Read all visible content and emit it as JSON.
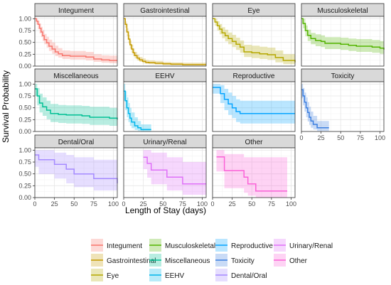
{
  "chart_data": {
    "type": "step",
    "ylabel": "Survival Probability",
    "xlabel": "Length of Stay (days)",
    "xlim": [
      0,
      105
    ],
    "ylim": [
      0,
      1.05
    ],
    "xticks": [
      0,
      25,
      50,
      75,
      100
    ],
    "yticks": [
      0.0,
      0.25,
      0.5,
      0.75,
      1.0
    ],
    "ytick_labels": [
      "0.00",
      "0.25",
      "0.50",
      "0.75",
      "1.00"
    ],
    "grid": true,
    "legend_position": "bottom",
    "panels": [
      {
        "name": "Integument",
        "color": "#F8766D",
        "x": [
          0,
          2,
          4,
          6,
          8,
          10,
          12,
          15,
          18,
          22,
          26,
          30,
          35,
          45,
          55,
          65,
          75,
          85,
          95,
          105
        ],
        "y": [
          1.0,
          0.95,
          0.88,
          0.8,
          0.72,
          0.64,
          0.56,
          0.49,
          0.42,
          0.36,
          0.3,
          0.26,
          0.22,
          0.21,
          0.21,
          0.19,
          0.15,
          0.13,
          0.12,
          0.12
        ],
        "upper": [
          1.0,
          1.0,
          0.96,
          0.9,
          0.83,
          0.76,
          0.68,
          0.62,
          0.56,
          0.5,
          0.43,
          0.38,
          0.33,
          0.32,
          0.32,
          0.3,
          0.25,
          0.23,
          0.22,
          0.22
        ],
        "lower": [
          1.0,
          0.88,
          0.78,
          0.69,
          0.61,
          0.53,
          0.46,
          0.39,
          0.32,
          0.26,
          0.21,
          0.18,
          0.15,
          0.14,
          0.14,
          0.12,
          0.09,
          0.07,
          0.06,
          0.06
        ]
      },
      {
        "name": "Gastrointestinal",
        "color": "#C49A00",
        "x": [
          0,
          2,
          4,
          6,
          8,
          10,
          12,
          14,
          17,
          20,
          24,
          28,
          32,
          40,
          50,
          60,
          75,
          90,
          105
        ],
        "y": [
          1.0,
          0.88,
          0.72,
          0.57,
          0.45,
          0.36,
          0.28,
          0.22,
          0.17,
          0.13,
          0.1,
          0.08,
          0.07,
          0.06,
          0.05,
          0.04,
          0.03,
          0.03,
          0.03
        ],
        "upper": [
          1.0,
          0.94,
          0.8,
          0.66,
          0.54,
          0.45,
          0.37,
          0.3,
          0.24,
          0.19,
          0.16,
          0.13,
          0.12,
          0.11,
          0.09,
          0.08,
          0.07,
          0.07,
          0.07
        ],
        "lower": [
          1.0,
          0.81,
          0.63,
          0.48,
          0.37,
          0.28,
          0.21,
          0.16,
          0.12,
          0.09,
          0.06,
          0.05,
          0.04,
          0.03,
          0.02,
          0.01,
          0.01,
          0.01,
          0.01
        ]
      },
      {
        "name": "Eye",
        "color": "#B5A800",
        "x": [
          0,
          3,
          6,
          9,
          12,
          16,
          20,
          25,
          30,
          35,
          40,
          50,
          60,
          70,
          80,
          90,
          105
        ],
        "y": [
          1.0,
          0.93,
          0.85,
          0.78,
          0.7,
          0.64,
          0.58,
          0.52,
          0.46,
          0.4,
          0.3,
          0.28,
          0.26,
          0.24,
          0.18,
          0.12,
          0.08
        ],
        "upper": [
          1.0,
          1.0,
          0.95,
          0.89,
          0.82,
          0.77,
          0.71,
          0.66,
          0.6,
          0.54,
          0.45,
          0.43,
          0.41,
          0.39,
          0.33,
          0.25,
          0.18
        ],
        "lower": [
          1.0,
          0.85,
          0.75,
          0.67,
          0.59,
          0.52,
          0.46,
          0.4,
          0.34,
          0.28,
          0.19,
          0.17,
          0.15,
          0.13,
          0.08,
          0.04,
          0.02
        ]
      },
      {
        "name": "Musculoskeletal",
        "color": "#53B400",
        "x": [
          0,
          2,
          5,
          8,
          12,
          18,
          25,
          30,
          40,
          50,
          60,
          70,
          80,
          90,
          100,
          105
        ],
        "y": [
          1.0,
          0.9,
          0.75,
          0.65,
          0.58,
          0.54,
          0.52,
          0.48,
          0.48,
          0.46,
          0.44,
          0.42,
          0.42,
          0.4,
          0.38,
          0.35
        ],
        "upper": [
          1.0,
          1.0,
          0.86,
          0.77,
          0.7,
          0.67,
          0.65,
          0.61,
          0.61,
          0.6,
          0.58,
          0.57,
          0.57,
          0.55,
          0.53,
          0.5
        ],
        "lower": [
          1.0,
          0.8,
          0.63,
          0.53,
          0.46,
          0.42,
          0.4,
          0.36,
          0.36,
          0.34,
          0.32,
          0.3,
          0.3,
          0.28,
          0.26,
          0.23
        ]
      },
      {
        "name": "Miscellaneous",
        "color": "#00C094",
        "x": [
          0,
          3,
          6,
          10,
          15,
          20,
          30,
          40,
          50,
          60,
          70,
          80,
          95,
          105
        ],
        "y": [
          0.9,
          0.75,
          0.6,
          0.52,
          0.45,
          0.38,
          0.36,
          0.35,
          0.35,
          0.33,
          0.3,
          0.3,
          0.28,
          0.25
        ],
        "upper": [
          1.0,
          0.92,
          0.8,
          0.72,
          0.65,
          0.58,
          0.56,
          0.55,
          0.55,
          0.54,
          0.52,
          0.52,
          0.5,
          0.48
        ],
        "lower": [
          0.75,
          0.55,
          0.4,
          0.33,
          0.26,
          0.2,
          0.18,
          0.17,
          0.17,
          0.16,
          0.14,
          0.14,
          0.12,
          0.1
        ]
      },
      {
        "name": "EEHV",
        "color": "#00B6EB",
        "x": [
          0,
          2,
          4,
          6,
          8,
          10,
          14,
          18,
          22,
          35
        ],
        "y": [
          0.85,
          0.65,
          0.5,
          0.38,
          0.28,
          0.2,
          0.12,
          0.08,
          0.04,
          0.04
        ],
        "upper": [
          1.0,
          0.85,
          0.72,
          0.6,
          0.5,
          0.4,
          0.3,
          0.22,
          0.15,
          0.15
        ],
        "lower": [
          0.65,
          0.45,
          0.3,
          0.2,
          0.12,
          0.07,
          0.03,
          0.01,
          0.0,
          0.0
        ]
      },
      {
        "name": "Reproductive",
        "color": "#06A4FF",
        "x": [
          0,
          5,
          10,
          15,
          20,
          25,
          30,
          35,
          40,
          50,
          60,
          75,
          90,
          105
        ],
        "y": [
          0.93,
          0.93,
          0.8,
          0.68,
          0.58,
          0.5,
          0.42,
          0.38,
          0.38,
          0.38,
          0.38,
          0.38,
          0.38,
          0.38
        ],
        "upper": [
          1.0,
          1.0,
          0.98,
          0.9,
          0.82,
          0.75,
          0.68,
          0.65,
          0.65,
          0.65,
          0.65,
          0.65,
          0.65,
          0.65
        ],
        "lower": [
          0.8,
          0.8,
          0.6,
          0.45,
          0.35,
          0.28,
          0.2,
          0.17,
          0.17,
          0.17,
          0.17,
          0.17,
          0.17,
          0.17
        ]
      },
      {
        "name": "Toxicity",
        "color": "#3C7FE0",
        "x": [
          0,
          2,
          4,
          6,
          8,
          10,
          12,
          15,
          20,
          25,
          30,
          35
        ],
        "y": [
          0.88,
          0.75,
          0.62,
          0.5,
          0.4,
          0.3,
          0.22,
          0.15,
          0.08,
          0.08,
          0.08,
          0.08
        ],
        "upper": [
          1.0,
          0.92,
          0.82,
          0.72,
          0.62,
          0.52,
          0.42,
          0.33,
          0.22,
          0.22,
          0.22,
          0.22
        ],
        "lower": [
          0.7,
          0.55,
          0.42,
          0.3,
          0.21,
          0.14,
          0.08,
          0.04,
          0.01,
          0.01,
          0.01,
          0.01
        ]
      },
      {
        "name": "Dental/Oral",
        "color": "#A58AFF",
        "x": [
          0,
          5,
          10,
          25,
          40,
          50,
          60,
          75,
          90,
          100,
          105
        ],
        "y": [
          0.9,
          0.8,
          0.8,
          0.7,
          0.6,
          0.5,
          0.5,
          0.4,
          0.4,
          0.4,
          0.3
        ],
        "upper": [
          1.0,
          1.0,
          1.0,
          0.95,
          0.9,
          0.85,
          0.85,
          0.8,
          0.8,
          0.8,
          0.7
        ],
        "lower": [
          0.65,
          0.5,
          0.5,
          0.4,
          0.3,
          0.22,
          0.22,
          0.15,
          0.15,
          0.15,
          0.08
        ]
      },
      {
        "name": "Urinary/Renal",
        "color": "#DF70F8",
        "x": [
          25,
          30,
          35,
          45,
          55,
          65,
          75,
          85,
          95,
          105
        ],
        "y": [
          0.85,
          0.72,
          0.58,
          0.58,
          0.43,
          0.43,
          0.29,
          0.29,
          0.29,
          0.29
        ],
        "upper": [
          1.0,
          1.0,
          0.95,
          0.95,
          0.85,
          0.85,
          0.75,
          0.75,
          0.75,
          0.75
        ],
        "lower": [
          0.6,
          0.42,
          0.28,
          0.28,
          0.15,
          0.15,
          0.06,
          0.06,
          0.06,
          0.06
        ]
      },
      {
        "name": "Other",
        "color": "#FB61D7",
        "x": [
          5,
          15,
          25,
          35,
          40,
          45,
          55,
          65,
          75,
          85,
          95
        ],
        "y": [
          0.86,
          0.57,
          0.57,
          0.57,
          0.43,
          0.29,
          0.14,
          0.14,
          0.14,
          0.14,
          0.14
        ],
        "upper": [
          1.0,
          0.92,
          0.92,
          0.92,
          0.85,
          0.85,
          0.85,
          0.85,
          0.85,
          0.85,
          0.85
        ],
        "lower": [
          0.55,
          0.2,
          0.2,
          0.2,
          0.1,
          0.04,
          0.0,
          0.0,
          0.0,
          0.0,
          0.0
        ]
      }
    ],
    "legend": [
      {
        "label": "Integument",
        "color": "#F8766D"
      },
      {
        "label": "Gastrointestinal",
        "color": "#C49A00"
      },
      {
        "label": "Eye",
        "color": "#B5A800"
      },
      {
        "label": "Musculoskeletal",
        "color": "#53B400"
      },
      {
        "label": "Miscellaneous",
        "color": "#00C094"
      },
      {
        "label": "EEHV",
        "color": "#00B6EB"
      },
      {
        "label": "Reproductive",
        "color": "#06A4FF"
      },
      {
        "label": "Toxicity",
        "color": "#3C7FE0"
      },
      {
        "label": "Dental/Oral",
        "color": "#A58AFF"
      },
      {
        "label": "Urinary/Renal",
        "color": "#DF70F8"
      },
      {
        "label": "Other",
        "color": "#FB61D7"
      }
    ]
  }
}
